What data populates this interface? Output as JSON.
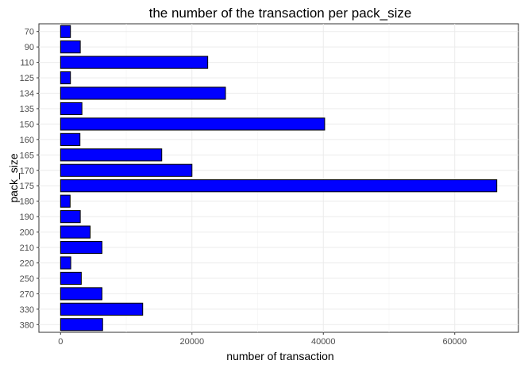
{
  "chart_data": {
    "type": "bar",
    "orientation": "horizontal",
    "title": "the number of the transaction per pack_size",
    "xlabel": "number of transaction",
    "ylabel": "pack_size",
    "categories": [
      "70",
      "90",
      "110",
      "125",
      "134",
      "135",
      "150",
      "160",
      "165",
      "170",
      "175",
      "180",
      "190",
      "200",
      "210",
      "220",
      "250",
      "270",
      "330",
      "380"
    ],
    "values": [
      1500,
      3000,
      22400,
      1500,
      25100,
      3250,
      40200,
      2950,
      15400,
      20000,
      66400,
      1450,
      3000,
      4500,
      6300,
      1550,
      3150,
      6300,
      12500,
      6400
    ],
    "x_ticks": [
      0,
      20000,
      40000,
      60000
    ],
    "x_tick_labels": [
      "0",
      "20000",
      "40000",
      "60000"
    ],
    "xlim": [
      -3300,
      69700
    ],
    "bar_fill": "#0000ff",
    "bar_stroke": "#000000",
    "grid": true
  }
}
